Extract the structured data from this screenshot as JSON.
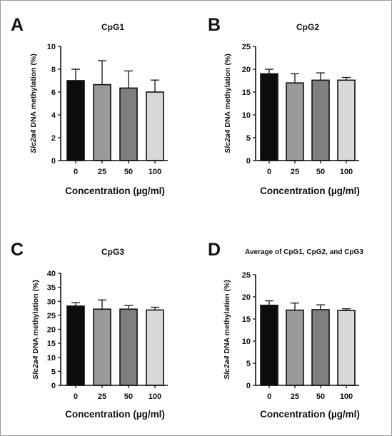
{
  "chart_data": [
    {
      "panel": "A",
      "type": "bar",
      "title": "CpG1",
      "xlabel": "Concentration (µg/ml)",
      "ylabel_italic": "Slc2a4",
      "ylabel_rest": " DNA methylation (%)",
      "categories": [
        "0",
        "25",
        "50",
        "100"
      ],
      "values": [
        7.0,
        6.65,
        6.35,
        6.0
      ],
      "errors": [
        1.0,
        2.1,
        1.5,
        1.05
      ],
      "ylim": [
        0,
        10
      ],
      "yticks": [
        "0",
        "2",
        "4",
        "6",
        "8",
        "10"
      ],
      "colors": [
        "#0d0d0d",
        "#9a9a9a",
        "#7f7f7f",
        "#d8d8d8"
      ]
    },
    {
      "panel": "B",
      "type": "bar",
      "title": "CpG2",
      "xlabel": "Concentration (µg/ml)",
      "ylabel_italic": "Slc2a4",
      "ylabel_rest": " DNA methylation (%)",
      "categories": [
        "0",
        "25",
        "50",
        "100"
      ],
      "values": [
        19.0,
        17.0,
        17.6,
        17.6
      ],
      "errors": [
        1.0,
        2.0,
        1.6,
        0.6
      ],
      "ylim": [
        0,
        25
      ],
      "yticks": [
        "0",
        "5",
        "10",
        "15",
        "20",
        "25"
      ],
      "colors": [
        "#0d0d0d",
        "#9a9a9a",
        "#7f7f7f",
        "#d8d8d8"
      ]
    },
    {
      "panel": "C",
      "type": "bar",
      "title": "CpG3",
      "xlabel": "Concentration (µg/ml)",
      "ylabel_italic": "Slc2a4",
      "ylabel_rest": " DNA methylation (%)",
      "categories": [
        "0",
        "25",
        "50",
        "100"
      ],
      "values": [
        28.3,
        27.2,
        27.2,
        26.9
      ],
      "errors": [
        1.2,
        3.3,
        1.3,
        1.0
      ],
      "ylim": [
        0,
        40
      ],
      "yticks": [
        "0",
        "5",
        "10",
        "15",
        "20",
        "25",
        "30",
        "35",
        "40"
      ],
      "colors": [
        "#0d0d0d",
        "#9a9a9a",
        "#7f7f7f",
        "#d8d8d8"
      ]
    },
    {
      "panel": "D",
      "type": "bar",
      "title": "Average of CpG1, CpG2, and CpG3",
      "xlabel": "Concentration (µg/ml)",
      "ylabel_italic": "Slc2a4",
      "ylabel_rest": " DNA methylation (%)",
      "categories": [
        "0",
        "25",
        "50",
        "100"
      ],
      "values": [
        18.1,
        17.0,
        17.1,
        16.9
      ],
      "errors": [
        1.0,
        1.6,
        1.1,
        0.4
      ],
      "ylim": [
        0,
        25
      ],
      "yticks": [
        "0",
        "5",
        "10",
        "15",
        "20",
        "25"
      ],
      "colors": [
        "#0d0d0d",
        "#9a9a9a",
        "#7f7f7f",
        "#d8d8d8"
      ]
    }
  ]
}
